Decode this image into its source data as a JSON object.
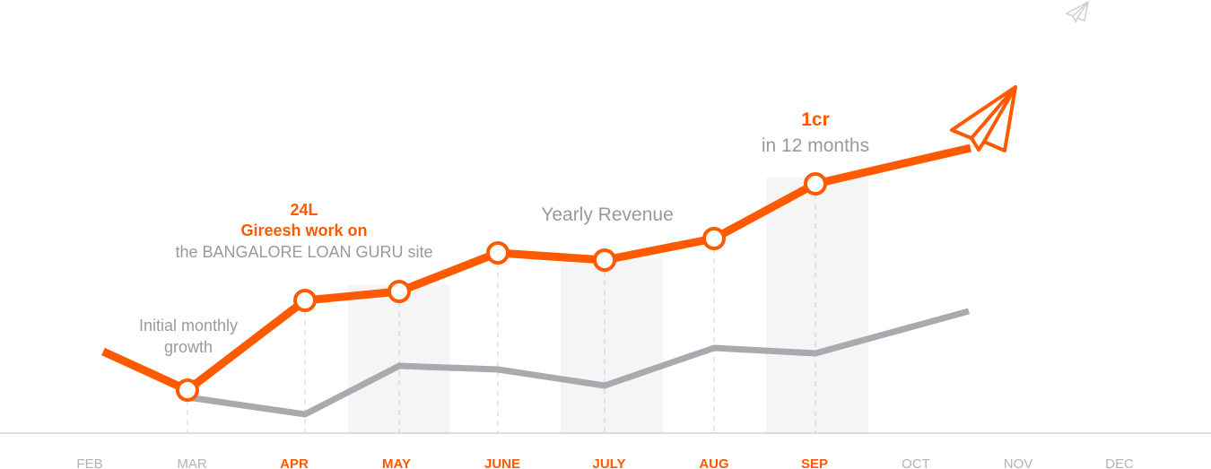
{
  "chart_data": {
    "type": "line",
    "title": "",
    "categories": [
      "FEB",
      "MAR",
      "APR",
      "MAY",
      "JUNE",
      "JULY",
      "AUG",
      "SEP",
      "OCT",
      "NOV",
      "DEC"
    ],
    "highlighted_categories": [
      "APR",
      "MAY",
      "JUNE",
      "JULY",
      "AUG",
      "SEP"
    ],
    "shaded_columns": [
      "MAY",
      "JULY",
      "SEP"
    ],
    "series": [
      {
        "color": "#ff5a00",
        "points": [
          [
            "FEB",
            91
          ],
          [
            "MAR",
            48
          ],
          [
            "APR",
            148
          ],
          [
            "MAY",
            158
          ],
          [
            "JUNE",
            201
          ],
          [
            "JULY",
            193
          ],
          [
            "AUG",
            217
          ],
          [
            "SEP",
            278
          ],
          [
            "OCT",
            318
          ]
        ],
        "markers": [
          "MAR",
          "APR",
          "MAY",
          "JUNE",
          "JULY",
          "AUG",
          "SEP"
        ]
      },
      {
        "color": "#a7abaf",
        "points": [
          [
            "MAR",
            40
          ],
          [
            "APR",
            21
          ],
          [
            "MAY",
            75
          ],
          [
            "JUNE",
            71
          ],
          [
            "JULY",
            53
          ],
          [
            "AUG",
            95
          ],
          [
            "SEP",
            89
          ],
          [
            "OCT",
            136
          ]
        ]
      }
    ],
    "annotations": {
      "initial": {
        "line1": "Initial monthly",
        "line2": "growth"
      },
      "milestone": {
        "value": "24L",
        "line2": "Gireesh work on",
        "line3": "the BANGALORE LOAN GURU site"
      },
      "series_label": "Yearly Revenue",
      "goal": {
        "value": "1cr",
        "line2": "in 12 months"
      }
    },
    "grid": false
  },
  "colors": {
    "accent": "#ff5a00",
    "gray": "#a7abaf",
    "muted_label": "#b3b3b3",
    "shade": "#f5f5f5"
  },
  "icons": [
    "paper-plane-icon"
  ]
}
